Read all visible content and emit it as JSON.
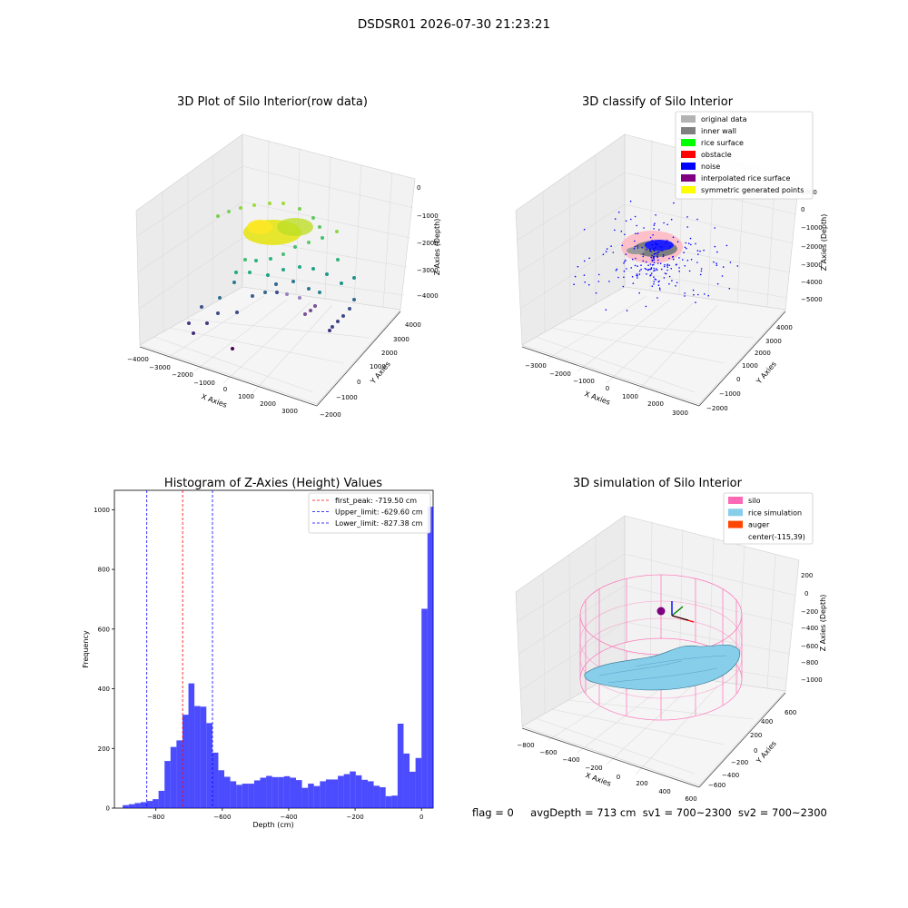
{
  "figure_title": "DSDSR01 2026-07-30 21:23:21",
  "status_line": {
    "flag": "flag = 0",
    "avg_depth": "avgDepth = 713 cm",
    "sv1": "sv1 = 700~2300",
    "sv2": "sv2 = 700~2300"
  },
  "chart_data": [
    {
      "type": "scatter",
      "title": "3D Plot of Silo Interior(row data)",
      "xlabel": "X Axies",
      "ylabel": "Y Axies",
      "zlabel": "Z Axies (Depth)",
      "xticks": [
        "−4000",
        "−3000",
        "−2000",
        "−1000",
        "0",
        "1000",
        "2000",
        "3000"
      ],
      "yticks": [
        "−2000",
        "−1000",
        "0",
        "1000",
        "2000",
        "3000",
        "4000"
      ],
      "zticks": [
        "0",
        "−1000",
        "−2000",
        "−3000",
        "−4000"
      ],
      "xlim": [
        -4000,
        3500
      ],
      "ylim": [
        -2000,
        4000
      ],
      "zlim": [
        -4500,
        0
      ],
      "colormap": "viridis (by depth)"
    },
    {
      "type": "scatter",
      "title": "3D classify of Silo Interior",
      "xlabel": "X Axies",
      "ylabel": "Y Axies",
      "zlabel": "Z Axies (Depth)",
      "xticks": [
        "−3000",
        "−2000",
        "−1000",
        "0",
        "1000",
        "2000",
        "3000"
      ],
      "yticks": [
        "−2000",
        "−1000",
        "0",
        "1000",
        "2000",
        "3000",
        "4000"
      ],
      "zticks": [
        "1000",
        "0",
        "−1000",
        "−2000",
        "−3000",
        "−4000",
        "−5000"
      ],
      "legend_position": "upper-right",
      "legend": [
        {
          "label": "original data",
          "color": "#b3b3b3"
        },
        {
          "label": "inner wall",
          "color": "#808080"
        },
        {
          "label": "rice surface",
          "color": "#00ff00"
        },
        {
          "label": "obstacle",
          "color": "#ff0000"
        },
        {
          "label": "noise",
          "color": "#0000ff"
        },
        {
          "label": "interpolated rice surface",
          "color": "#800080"
        },
        {
          "label": "symmetric generated points",
          "color": "#ffff00"
        }
      ]
    },
    {
      "type": "bar",
      "title": "Histogram of Z-Axies (Height) Values",
      "xlabel": "Depth (cm)",
      "ylabel": "Frequency",
      "xlim": [
        -925,
        35
      ],
      "ylim": [
        0,
        1065
      ],
      "xticks": [
        "−800",
        "−600",
        "−400",
        "−200",
        "0"
      ],
      "xtick_values": [
        -800,
        -600,
        -400,
        -200,
        0
      ],
      "yticks": [
        "0",
        "200",
        "400",
        "600",
        "800",
        "1000"
      ],
      "ytick_values": [
        0,
        200,
        400,
        600,
        800,
        1000
      ],
      "bar_color": "#0000ff",
      "bin_start": -900,
      "bin_width": 18,
      "values": [
        10,
        13,
        17,
        20,
        24,
        30,
        58,
        158,
        205,
        227,
        313,
        418,
        342,
        340,
        285,
        186,
        127,
        105,
        90,
        78,
        82,
        82,
        93,
        102,
        108,
        104,
        104,
        107,
        102,
        94,
        68,
        82,
        74,
        90,
        96,
        96,
        108,
        114,
        123,
        110,
        95,
        90,
        75,
        70,
        40,
        42,
        283,
        183,
        122,
        168,
        668,
        1010
      ],
      "lines": [
        {
          "label": "first_peak: -719.50 cm",
          "x": -719.5,
          "color": "#ff0000"
        },
        {
          "label": "Upper_limit: -629.60 cm",
          "x": -629.6,
          "color": "#0000ff"
        },
        {
          "label": "Lower_limit: -827.38 cm",
          "x": -827.38,
          "color": "#0000ff"
        }
      ],
      "legend_position": "upper-right"
    },
    {
      "type": "surface",
      "title": "3D simulation of Silo Interior",
      "xlabel": "X Axies",
      "ylabel": "Y Axies",
      "zlabel": "Z Axies (Depth)",
      "xticks": [
        "−800",
        "−600",
        "−400",
        "−200",
        "0",
        "200",
        "400",
        "600"
      ],
      "yticks": [
        "−600",
        "−400",
        "−200",
        "0",
        "200",
        "400",
        "600"
      ],
      "zticks": [
        "200",
        "0",
        "−200",
        "−400",
        "−600",
        "−800",
        "−1000"
      ],
      "legend_position": "upper-right",
      "legend": [
        {
          "label": "silo",
          "color": "#ff69b4"
        },
        {
          "label": "rice simulation",
          "color": "#87ceeb"
        },
        {
          "label": "auger",
          "color": "#ff4500"
        },
        {
          "label": "center(-115,39)",
          "color": ""
        }
      ]
    }
  ]
}
